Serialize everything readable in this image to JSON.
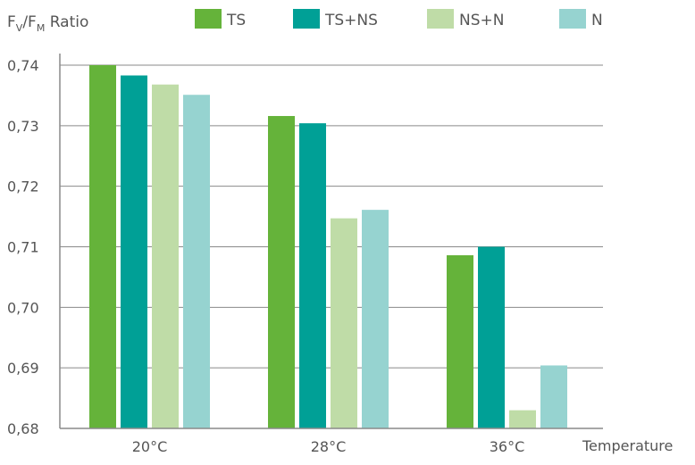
{
  "chart_data": {
    "type": "bar",
    "title": "",
    "ylabel": {
      "base": "F",
      "sub1": "V",
      "slash": "/F",
      "sub2": "M",
      "suffix": " Ratio"
    },
    "xlabel": "Temperature",
    "categories": [
      "20°C",
      "28°C",
      "36°C"
    ],
    "ylim": [
      0.68,
      0.74
    ],
    "yticks": [
      0.74,
      0.73,
      0.72,
      0.71,
      0.7,
      0.69,
      0.68
    ],
    "ytick_labels": [
      "0,74",
      "0,73",
      "0,72",
      "0,71",
      "0,70",
      "0,69",
      "0,68"
    ],
    "grid": true,
    "legend_position": "top",
    "series": [
      {
        "name": "TS",
        "color": "#65b33a",
        "values": [
          0.74,
          0.7316,
          0.7086
        ]
      },
      {
        "name": "TS+NS",
        "color": "#00a096",
        "values": [
          0.7383,
          0.7304,
          0.71
        ]
      },
      {
        "name": "NS+N",
        "color": "#bfdca7",
        "values": [
          0.7368,
          0.7147,
          0.683
        ]
      },
      {
        "name": "N",
        "color": "#96d3d0",
        "values": [
          0.7351,
          0.7161,
          0.6904
        ]
      }
    ]
  }
}
